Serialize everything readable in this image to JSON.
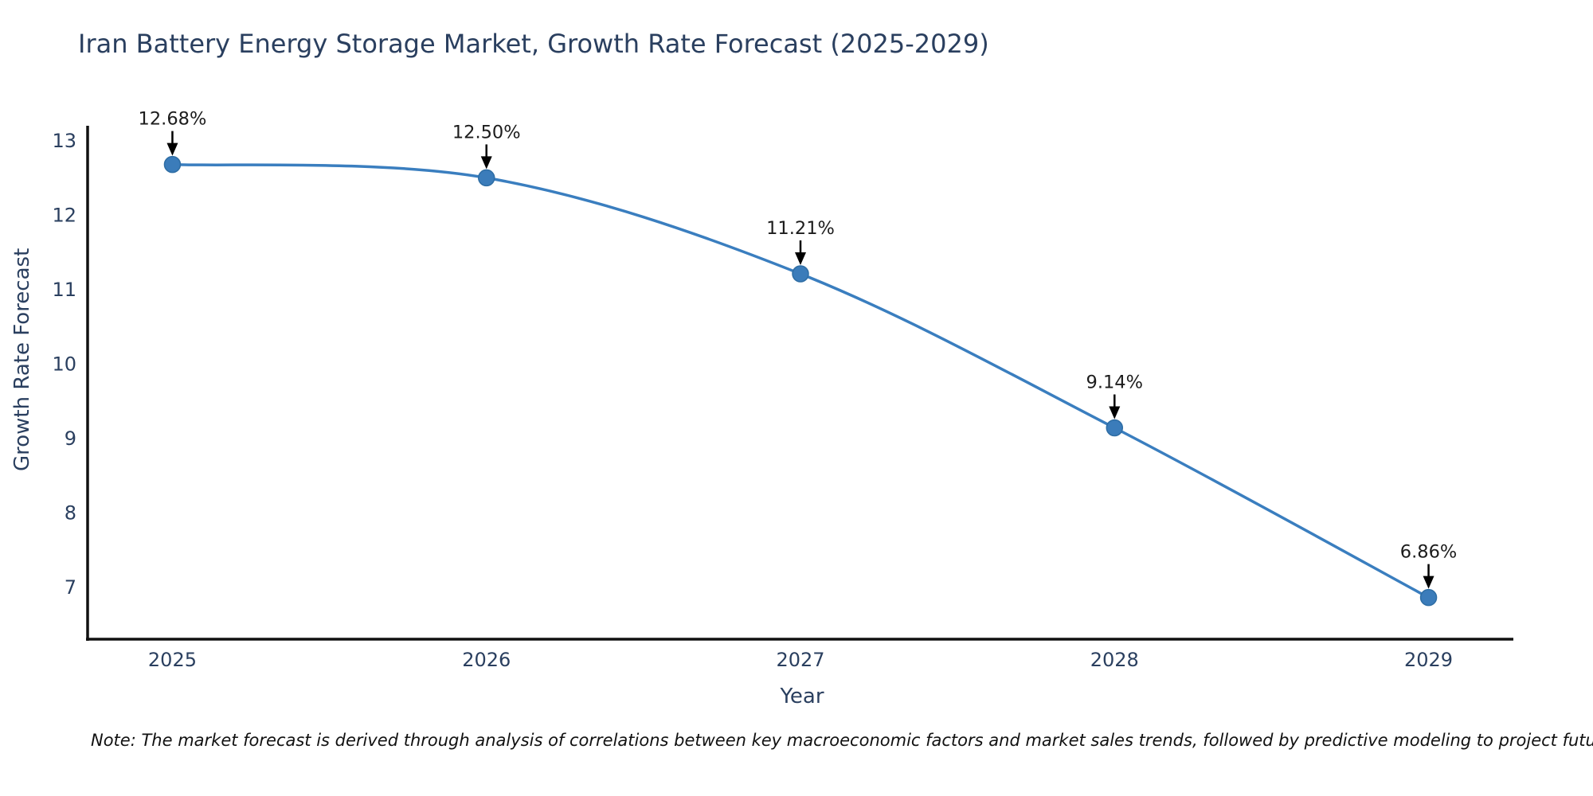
{
  "title": "Iran Battery Energy Storage Market, Growth Rate Forecast (2025-2029)",
  "note": "Note: The market forecast is derived through analysis of correlations between key macroeconomic factors and market sales trends, followed by predictive modeling to project future sales",
  "chart_data": {
    "type": "line",
    "line_shape": "spline",
    "title": "Iran Battery Energy Storage Market, Growth Rate Forecast (2025-2029)",
    "xlabel": "Year",
    "ylabel": "Growth Rate Forecast",
    "x": [
      2025,
      2026,
      2027,
      2028,
      2029
    ],
    "values": [
      12.68,
      12.5,
      11.21,
      9.14,
      6.86
    ],
    "point_labels": [
      "12.68%",
      "12.50%",
      "11.21%",
      "9.14%",
      "6.86%"
    ],
    "xticks": [
      "2025",
      "2026",
      "2027",
      "2028",
      "2029"
    ],
    "yticks": [
      7,
      8,
      9,
      10,
      11,
      12,
      13
    ],
    "xlim": [
      2024.73,
      2029.27
    ],
    "ylim": [
      6.3,
      13.2
    ],
    "grid": false,
    "legend": false,
    "colors": {
      "line": "#3a7ebf",
      "marker_fill": "#3b7cba",
      "marker_edge": "#2e6da4",
      "axis_line": "#111111",
      "tick_text": "#2a3f5f",
      "annotation_text": "#1c1c1c",
      "annotation_arrow": "#000000",
      "title_text": "#2a3f5f"
    }
  }
}
